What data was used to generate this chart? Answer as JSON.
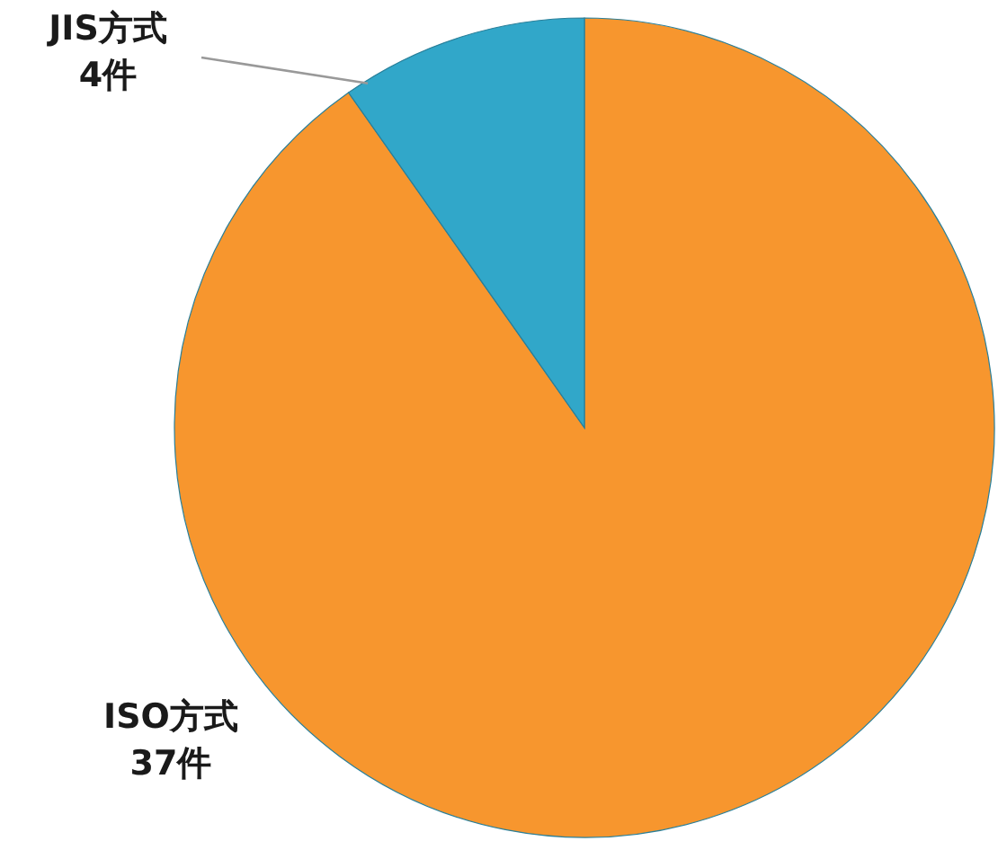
{
  "chart_data": {
    "type": "pie",
    "categories": [
      "ISO方式",
      "JIS方式"
    ],
    "values": [
      37,
      4
    ],
    "colors": [
      "#f7962e",
      "#31a7c9"
    ],
    "value_labels": [
      "37件",
      "4件"
    ]
  }
}
